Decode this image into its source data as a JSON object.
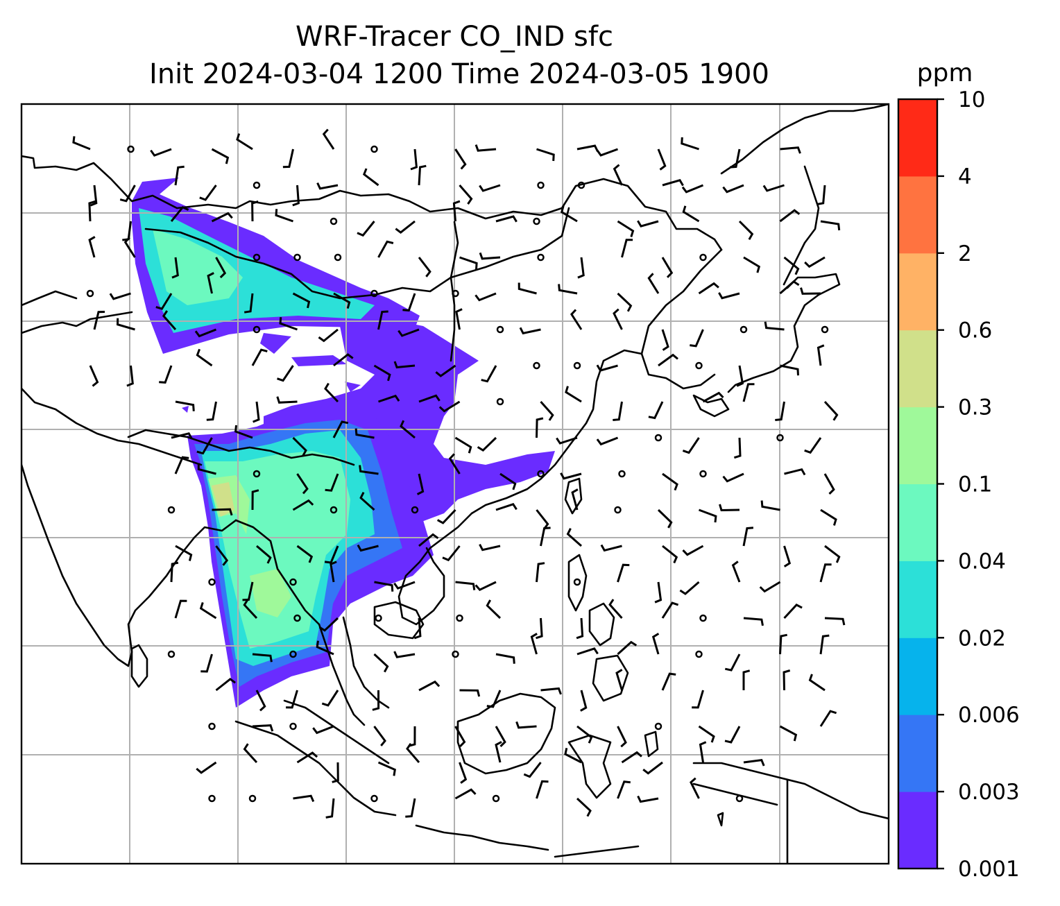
{
  "title_line1": "WRF-Tracer CO_IND sfc",
  "title_line2": "Init 2024-03-04 1200 Time 2024-03-05 1900",
  "colorbar": {
    "unit": "ppm",
    "levels": [
      "0.001",
      "0.003",
      "0.006",
      "0.02",
      "0.04",
      "0.1",
      "0.3",
      "0.6",
      "2",
      "4",
      "10"
    ],
    "colors": [
      "#6a2cff",
      "#3576f5",
      "#06b3ec",
      "#2ce0d8",
      "#6cf9bf",
      "#9ff99a",
      "#d0e08a",
      "#ffb265",
      "#ff7340",
      "#ff2a17"
    ]
  },
  "map": {
    "plume_colors": {
      "low": "#6a2cff",
      "mid": "#3576f5",
      "cyan": "#2ce0d8",
      "green": "#6cf9bf",
      "lightgreen": "#9ff99a",
      "yellowgreen": "#d0e08a"
    },
    "gridline_color": "#b0b0b0",
    "wind_barbs": "shown"
  }
}
